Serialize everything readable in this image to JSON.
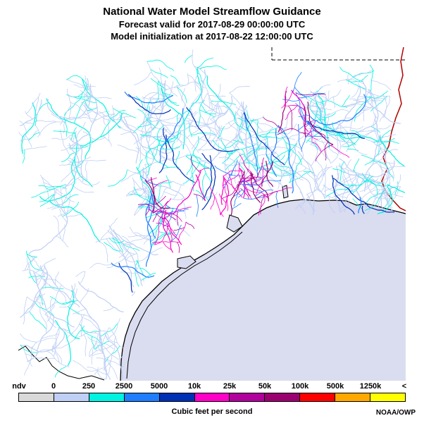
{
  "title": "National Water Model Streamflow Guidance",
  "subtitle1": "Forecast valid for 2017-08-29 00:00:00 UTC",
  "subtitle2": "Model initialization at 2017-08-22 12:00:00 UTC",
  "legend": {
    "tick_labels": [
      "ndv",
      "0",
      "250",
      "2500",
      "5000",
      "10k",
      "25k",
      "50k",
      "100k",
      "500k",
      "1250k",
      "<"
    ],
    "colors": [
      "#d9d9d9",
      "#bfcff5",
      "#00f2e1",
      "#1f7dff",
      "#0030b4",
      "#ff00c8",
      "#b1009c",
      "#9b0070",
      "#ff0000",
      "#ffa800",
      "#ffff00"
    ],
    "unit_label": "Cubic feet per second",
    "credit": "NOAA/OWP"
  },
  "map": {
    "ocean_color": "#dadcf0",
    "land_color": "#ffffff",
    "coastline_color": "#000000",
    "state_border_style": "dashed"
  }
}
